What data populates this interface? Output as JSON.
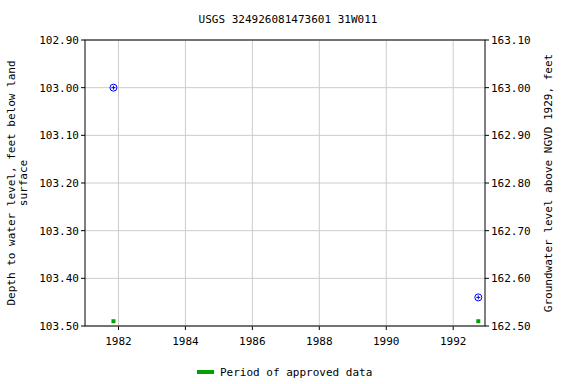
{
  "chart_data": {
    "type": "scatter",
    "title": "USGS 324926081473601 31W011",
    "ylabel": [
      "Depth to water level, feet below land",
      "surface"
    ],
    "y2label": "Groundwater level above NGVD 1929, feet",
    "x": [
      1981.85,
      1992.75
    ],
    "series": [
      {
        "color": "#0000ff",
        "marker": "circle",
        "values": [
          103.0,
          103.44
        ]
      },
      {
        "name": "Period of approved data",
        "color": "#00a000",
        "marker": "square",
        "values": [
          103.49,
          103.49
        ]
      }
    ],
    "xlim": [
      1981.0,
      1992.95
    ],
    "xticks": [
      1982,
      1984,
      1986,
      1988,
      1990,
      1992
    ],
    "ylim": [
      103.5,
      102.9
    ],
    "yticks": [
      {
        "value": 102.9,
        "label": "102.90"
      },
      {
        "value": 103.0,
        "label": "103.00"
      },
      {
        "value": 103.1,
        "label": "103.10"
      },
      {
        "value": 103.2,
        "label": "103.20"
      },
      {
        "value": 103.3,
        "label": "103.30"
      },
      {
        "value": 103.4,
        "label": "103.40"
      },
      {
        "value": 103.5,
        "label": "103.50"
      }
    ],
    "y2lim": [
      162.5,
      163.1
    ],
    "y2ticks": [
      {
        "value": 162.5,
        "label": "162.50"
      },
      {
        "value": 162.6,
        "label": "162.60"
      },
      {
        "value": 162.7,
        "label": "162.70"
      },
      {
        "value": 162.8,
        "label": "162.80"
      },
      {
        "value": 162.9,
        "label": "162.90"
      },
      {
        "value": 163.0,
        "label": "163.00"
      },
      {
        "value": 163.1,
        "label": "163.10"
      }
    ],
    "grid": true,
    "legend": "bottom"
  }
}
